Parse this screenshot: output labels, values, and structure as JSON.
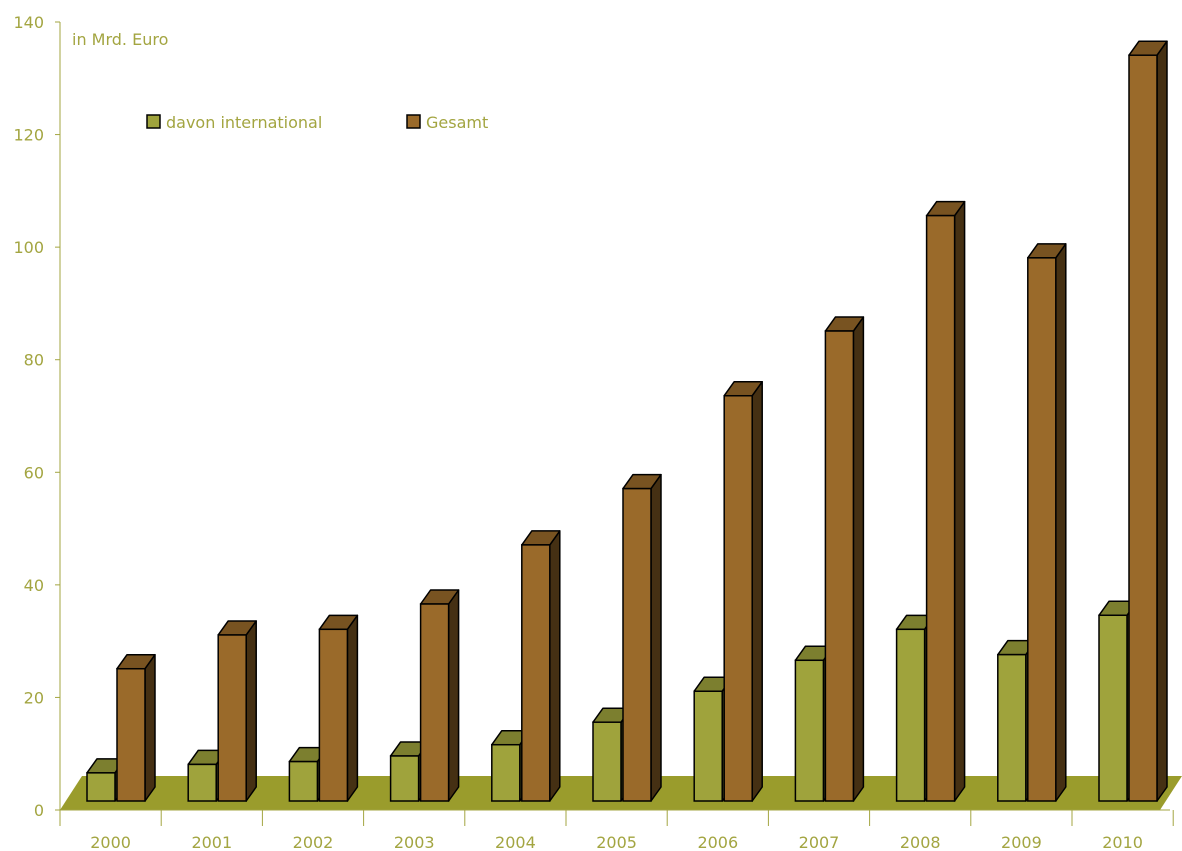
{
  "chart_data": {
    "type": "bar",
    "ylabel": "in Mrd. Euro",
    "ylim": [
      0,
      140
    ],
    "yticks": [
      0,
      20,
      40,
      60,
      80,
      100,
      120,
      140
    ],
    "categories": [
      "2000",
      "2001",
      "2002",
      "2003",
      "2004",
      "2005",
      "2006",
      "2007",
      "2008",
      "2009",
      "2010"
    ],
    "series": [
      {
        "name": "davon international",
        "values": [
          5,
          6.5,
          7,
          8,
          10,
          14,
          19.5,
          25,
          30.5,
          26,
          33
        ],
        "color": "#9fa33c"
      },
      {
        "name": "Gesamt",
        "values": [
          23.5,
          29.5,
          30.5,
          35,
          45.5,
          55.5,
          72,
          83.5,
          104,
          96.5,
          132.5
        ],
        "color": "#9a6a2a"
      }
    ],
    "colors": {
      "axis_text": "#a3a541",
      "floor": "#9a9c2c"
    }
  }
}
